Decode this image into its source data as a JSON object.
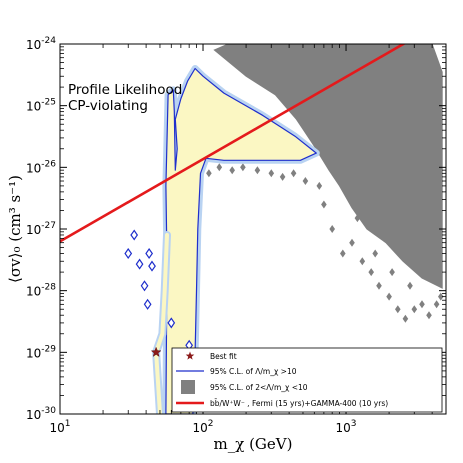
{
  "chart_data": {
    "type": "scatter",
    "xscale": "log",
    "yscale": "log",
    "xlim": [
      10,
      5000
    ],
    "ylim": [
      1e-30,
      1e-24
    ],
    "x_ticks": [
      {
        "base": "10",
        "exp": "1"
      },
      {
        "base": "10",
        "exp": "2"
      },
      {
        "base": "10",
        "exp": "3"
      }
    ],
    "y_ticks": [
      {
        "base": "10",
        "exp": "-30"
      },
      {
        "base": "10",
        "exp": "-29"
      },
      {
        "base": "10",
        "exp": "-28"
      },
      {
        "base": "10",
        "exp": "-27"
      },
      {
        "base": "10",
        "exp": "-26"
      },
      {
        "base": "10",
        "exp": "-25"
      },
      {
        "base": "10",
        "exp": "-24"
      }
    ],
    "xlabel": "m_χ (GeV)",
    "ylabel": "⟨σv⟩₀ (cm³ s⁻¹)",
    "annotations": [
      "Profile Likelihood",
      "CP-violating"
    ],
    "best_fit": {
      "x": 47,
      "y": 1e-29
    },
    "fermi_line": {
      "points": [
        [
          10,
          6.3e-28
        ],
        [
          5000,
          2.5e-24
        ]
      ],
      "color": "#e41a1c"
    },
    "region_95_lambda_gt_10": {
      "outline_color": "#1f2fcc",
      "fill_color": "#fbf7c3",
      "polygon": [
        [
          55,
          1e-30
        ],
        [
          56,
          3e-28
        ],
        [
          55,
          5e-27
        ],
        [
          57,
          1.5e-25
        ],
        [
          62,
          1.8e-25
        ],
        [
          63,
          8e-26
        ],
        [
          64,
          9e-27
        ],
        [
          66,
          2e-26
        ],
        [
          64,
          6e-26
        ],
        [
          70,
          1.3e-25
        ],
        [
          78,
          2.5e-25
        ],
        [
          88,
          4e-25
        ],
        [
          100,
          3e-25
        ],
        [
          140,
          1.6e-25
        ],
        [
          260,
          7e-26
        ],
        [
          440,
          3.2e-26
        ],
        [
          620,
          1.7e-26
        ],
        [
          480,
          1.3e-26
        ],
        [
          250,
          1.3e-26
        ],
        [
          140,
          1.3e-26
        ],
        [
          105,
          1.4e-26
        ],
        [
          96,
          8e-27
        ],
        [
          92,
          1e-27
        ],
        [
          90,
          1e-28
        ],
        [
          88,
          1e-29
        ],
        [
          85,
          1e-30
        ]
      ],
      "ridge": [
        [
          50,
          1e-30
        ],
        [
          47,
          1e-29
        ],
        [
          52,
          2e-29
        ],
        [
          54,
          1e-28
        ],
        [
          56,
          8e-28
        ]
      ],
      "diamonds": [
        [
          36,
          2.7e-28
        ],
        [
          39,
          1.2e-28
        ],
        [
          41,
          6e-29
        ],
        [
          44,
          2.5e-28
        ],
        [
          42,
          4e-28
        ],
        [
          33,
          8e-28
        ],
        [
          30,
          4e-28
        ],
        [
          60,
          3e-29
        ],
        [
          80,
          1.3e-29
        ]
      ]
    },
    "region_95_lambda_2_10": {
      "color": "#808080",
      "polygon": [
        [
          120,
          8e-25
        ],
        [
          200,
          3e-25
        ],
        [
          320,
          1.5e-25
        ],
        [
          450,
          6e-26
        ],
        [
          600,
          2.2e-26
        ],
        [
          760,
          9e-27
        ],
        [
          900,
          5e-27
        ],
        [
          1100,
          2.2e-27
        ],
        [
          1400,
          1e-27
        ],
        [
          1900,
          6e-28
        ],
        [
          2500,
          3e-28
        ],
        [
          3400,
          1.6e-28
        ],
        [
          4700,
          1.1e-28
        ],
        [
          4700,
          3.5e-25
        ],
        [
          4000,
          1e-24
        ],
        [
          150,
          1e-24
        ]
      ],
      "scatter": [
        [
          950,
          4e-28
        ],
        [
          1100,
          6e-28
        ],
        [
          1300,
          3e-28
        ],
        [
          1500,
          2e-28
        ],
        [
          1700,
          1.2e-28
        ],
        [
          2000,
          8e-29
        ],
        [
          2300,
          5e-29
        ],
        [
          2600,
          3.5e-29
        ],
        [
          3000,
          5e-29
        ],
        [
          3400,
          6e-29
        ],
        [
          3800,
          4e-29
        ],
        [
          4300,
          6e-29
        ],
        [
          4600,
          8e-29
        ],
        [
          800,
          1e-27
        ],
        [
          700,
          2.5e-27
        ],
        [
          1200,
          1.5e-27
        ],
        [
          1600,
          4e-28
        ],
        [
          2100,
          2e-28
        ],
        [
          2800,
          1.2e-28
        ],
        [
          650,
          5e-27
        ],
        [
          520,
          6e-27
        ],
        [
          430,
          8e-27
        ],
        [
          360,
          7e-27
        ],
        [
          300,
          8e-27
        ],
        [
          240,
          9e-27
        ],
        [
          190,
          1e-26
        ],
        [
          160,
          9e-27
        ],
        [
          130,
          1e-26
        ],
        [
          110,
          8e-27
        ]
      ]
    },
    "legend": {
      "position": "lower-right",
      "entries": [
        {
          "label": "Best fit",
          "marker": "star",
          "color": "#8b1a1a"
        },
        {
          "label": "95% C.L. of Λ/m_χ >10",
          "marker": "line",
          "color": "#1f2fcc"
        },
        {
          "label": "95% C.L. of 2<Λ/m_χ <10",
          "marker": "square",
          "color": "#808080"
        },
        {
          "label": "bb̄/W⁺W⁻ , Fermi (15 yrs)+GAMMA-400 (10 yrs)",
          "marker": "line",
          "color": "#e41a1c"
        }
      ]
    }
  }
}
